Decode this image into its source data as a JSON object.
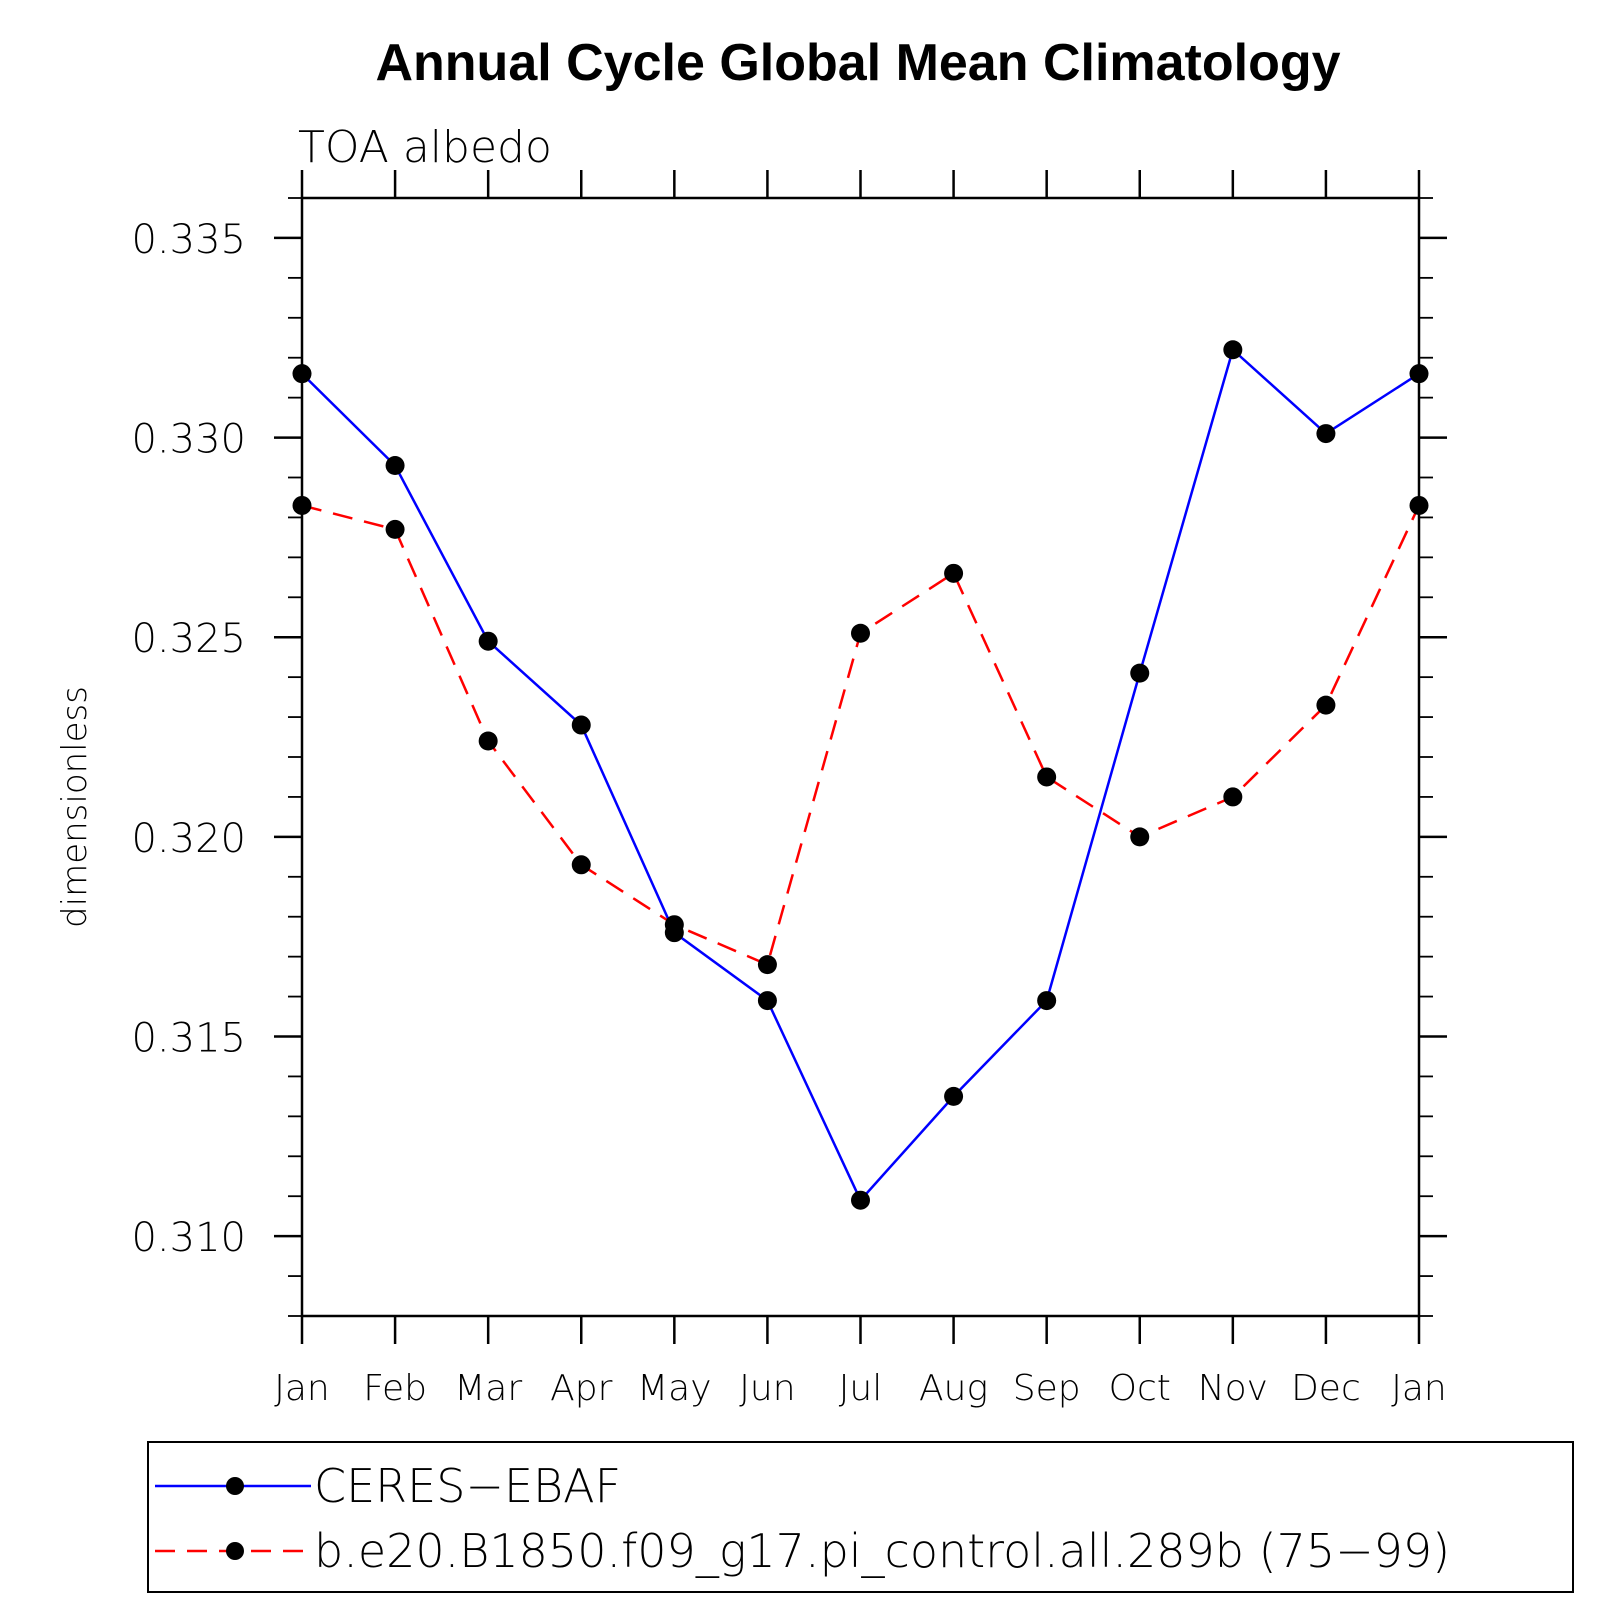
{
  "chart_data": {
    "type": "line",
    "title": "Annual Cycle Global Mean Climatology",
    "subtitle": "TOA albedo",
    "xlabel": "",
    "ylabel": "dimensionless",
    "categories": [
      "Jan",
      "Feb",
      "Mar",
      "Apr",
      "May",
      "Jun",
      "Jul",
      "Aug",
      "Sep",
      "Oct",
      "Nov",
      "Dec",
      "Jan"
    ],
    "ylim": [
      0.308,
      0.336
    ],
    "yticks": [
      "0.310",
      "0.315",
      "0.320",
      "0.325",
      "0.330",
      "0.335"
    ],
    "ytick_values": [
      0.31,
      0.315,
      0.32,
      0.325,
      0.33,
      0.335
    ],
    "y_minor_step": 0.001,
    "grid": false,
    "legend_position": "bottom",
    "series": [
      {
        "name": "CERES−EBAF",
        "color": "#0000ff",
        "line_style": "solid",
        "marker": "filled-circle",
        "values": [
          0.3316,
          0.3293,
          0.3249,
          0.3228,
          0.3176,
          0.3159,
          0.3109,
          0.3135,
          0.3159,
          0.3241,
          0.3322,
          0.3301,
          0.3316
        ]
      },
      {
        "name": "b.e20.B1850.f09_g17.pi_control.all.289b (75−99)",
        "color": "#ff0000",
        "line_style": "dashed",
        "marker": "filled-circle",
        "values": [
          0.3283,
          0.3277,
          0.3224,
          0.3193,
          0.3178,
          0.3168,
          0.3251,
          0.3266,
          0.3215,
          0.32,
          0.321,
          0.3233,
          0.3283
        ]
      }
    ]
  }
}
